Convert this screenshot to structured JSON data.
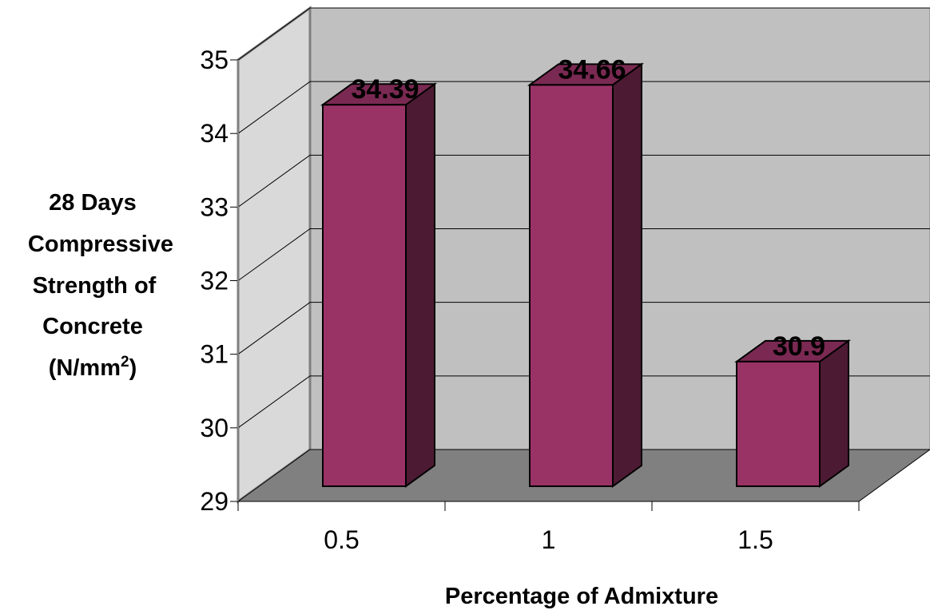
{
  "chart_data": {
    "type": "bar",
    "categories": [
      "0.5",
      "1",
      "1.5"
    ],
    "values": [
      34.39,
      34.66,
      30.9
    ],
    "data_labels": [
      "34.39",
      "34.66",
      "30.9"
    ],
    "title": "",
    "xlabel": "Percentage of Admixture",
    "ylabel_lines": [
      "28 Days",
      "Compressive",
      "Strength of",
      "Concrete"
    ],
    "ylabel_unit": {
      "before": "(N/mm",
      "superscript": "2",
      "after": ")"
    },
    "ylim": [
      29,
      35
    ],
    "yticks": [
      "29",
      "30",
      "31",
      "32",
      "33",
      "34",
      "35"
    ],
    "grid": true,
    "legend": "none",
    "style": "3d-column",
    "colors": {
      "bar_front": "#993366",
      "bar_side": "#4d1a33",
      "bar_top": "#7a2952",
      "back_wall": "#c0c0c0",
      "side_wall": "#d9d9d9",
      "floor": "#808080",
      "gridline": "#000000"
    }
  }
}
